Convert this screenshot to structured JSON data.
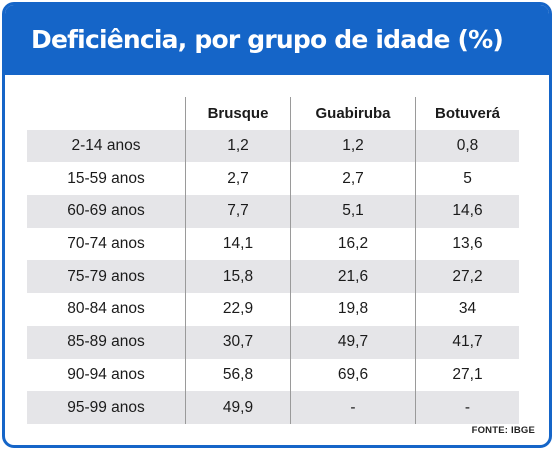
{
  "chart_data": {
    "type": "table",
    "title": "Deficiência, por grupo de idade (%)",
    "columns": [
      "",
      "Brusque",
      "Guabiruba",
      "Botuverá"
    ],
    "rows": [
      [
        "2-14 anos",
        "1,2",
        "1,2",
        "0,8"
      ],
      [
        "15-59 anos",
        "2,7",
        "2,7",
        "5"
      ],
      [
        "60-69 anos",
        "7,7",
        "5,1",
        "14,6"
      ],
      [
        "70-74 anos",
        "14,1",
        "16,2",
        "13,6"
      ],
      [
        "75-79 anos",
        "15,8",
        "21,6",
        "27,2"
      ],
      [
        "80-84 anos",
        "22,9",
        "19,8",
        "34"
      ],
      [
        "85-89 anos",
        "30,7",
        "49,7",
        "41,7"
      ],
      [
        "90-94 anos",
        "56,8",
        "69,6",
        "27,1"
      ],
      [
        "95-99 anos",
        "49,9",
        "-",
        "-"
      ]
    ],
    "source": "FONTE: IBGE"
  },
  "colors": {
    "accent": "#1565c8",
    "row_shade": "#e5e5e8",
    "text": "#1b1b1b",
    "separator": "#9a9a9a"
  }
}
